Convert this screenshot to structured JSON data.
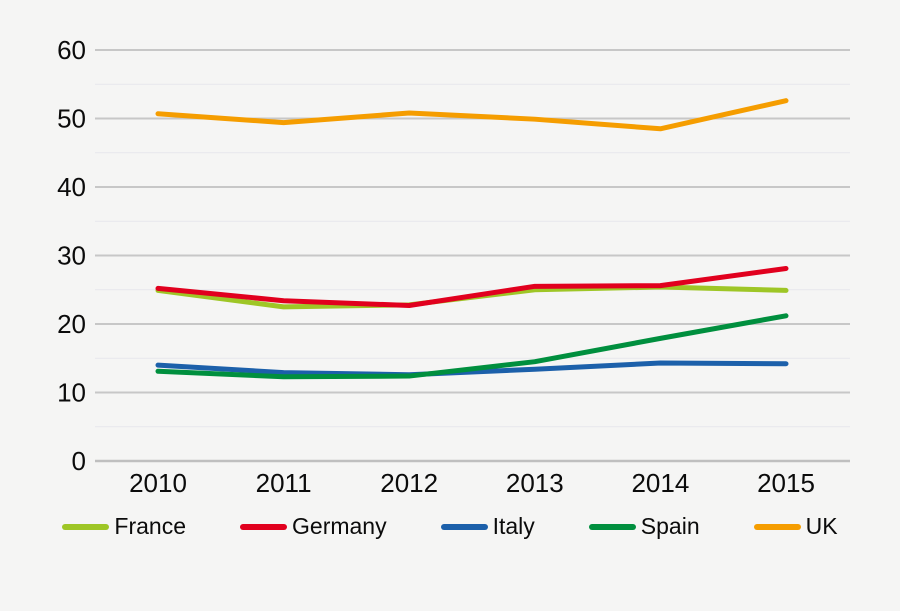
{
  "chart_data": {
    "type": "line",
    "title": "",
    "xlabel": "",
    "ylabel": "",
    "x_tick_labels": [
      "2010",
      "2011",
      "2012",
      "2013",
      "2014",
      "2015"
    ],
    "y_axis": {
      "min": 0,
      "max": 60,
      "major_step": 10,
      "minor_step": 5,
      "tick_labels": [
        "0",
        "10",
        "20",
        "30",
        "40",
        "50",
        "60"
      ]
    },
    "grid": true,
    "legend_position": "bottom",
    "series": [
      {
        "name": "France",
        "color": "#9EC626",
        "values": [
          24.9,
          22.5,
          22.8,
          25.0,
          25.4,
          24.9
        ]
      },
      {
        "name": "Germany",
        "color": "#E1001E",
        "values": [
          25.2,
          23.4,
          22.7,
          25.5,
          25.6,
          28.1
        ]
      },
      {
        "name": "Italy",
        "color": "#1C60AA",
        "values": [
          14.0,
          12.9,
          12.6,
          13.4,
          14.3,
          14.2
        ]
      },
      {
        "name": "Spain",
        "color": "#008F3E",
        "values": [
          13.1,
          12.3,
          12.4,
          14.5,
          17.9,
          21.2
        ]
      },
      {
        "name": "UK",
        "color": "#F59D00",
        "values": [
          50.7,
          49.4,
          50.8,
          49.9,
          48.5,
          52.6
        ]
      }
    ]
  },
  "colors": {
    "background": "#F5F5F4",
    "major_grid": "#C7C7C7",
    "minor_grid": "#E7E7EB",
    "axis_line": "#BFBFBF",
    "text": "#0b0b0b"
  }
}
